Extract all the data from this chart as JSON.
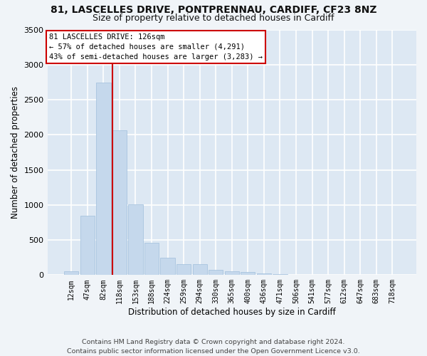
{
  "title1": "81, LASCELLES DRIVE, PONTPRENNAU, CARDIFF, CF23 8NZ",
  "title2": "Size of property relative to detached houses in Cardiff",
  "xlabel": "Distribution of detached houses by size in Cardiff",
  "ylabel": "Number of detached properties",
  "categories": [
    "12sqm",
    "47sqm",
    "82sqm",
    "118sqm",
    "153sqm",
    "188sqm",
    "224sqm",
    "259sqm",
    "294sqm",
    "330sqm",
    "365sqm",
    "400sqm",
    "436sqm",
    "471sqm",
    "506sqm",
    "541sqm",
    "577sqm",
    "612sqm",
    "647sqm",
    "683sqm",
    "718sqm"
  ],
  "values": [
    55,
    850,
    2740,
    2060,
    1010,
    460,
    250,
    155,
    155,
    70,
    55,
    45,
    20,
    15,
    8,
    5,
    3,
    2,
    2,
    2,
    2
  ],
  "bar_color": "#c5d8ec",
  "bar_edge_color": "#a0bedc",
  "vline_color": "#cc0000",
  "annotation_title": "81 LASCELLES DRIVE: 126sqm",
  "annotation_line1": "← 57% of detached houses are smaller (4,291)",
  "annotation_line2": "43% of semi-detached houses are larger (3,283) →",
  "footer1": "Contains HM Land Registry data © Crown copyright and database right 2024.",
  "footer2": "Contains public sector information licensed under the Open Government Licence v3.0.",
  "plot_bg_color": "#dde8f3",
  "fig_bg_color": "#f0f4f8",
  "grid_color": "#ffffff",
  "ylim": [
    0,
    3500
  ],
  "yticks": [
    0,
    500,
    1000,
    1500,
    2000,
    2500,
    3000,
    3500
  ],
  "vline_bar_index": 3
}
